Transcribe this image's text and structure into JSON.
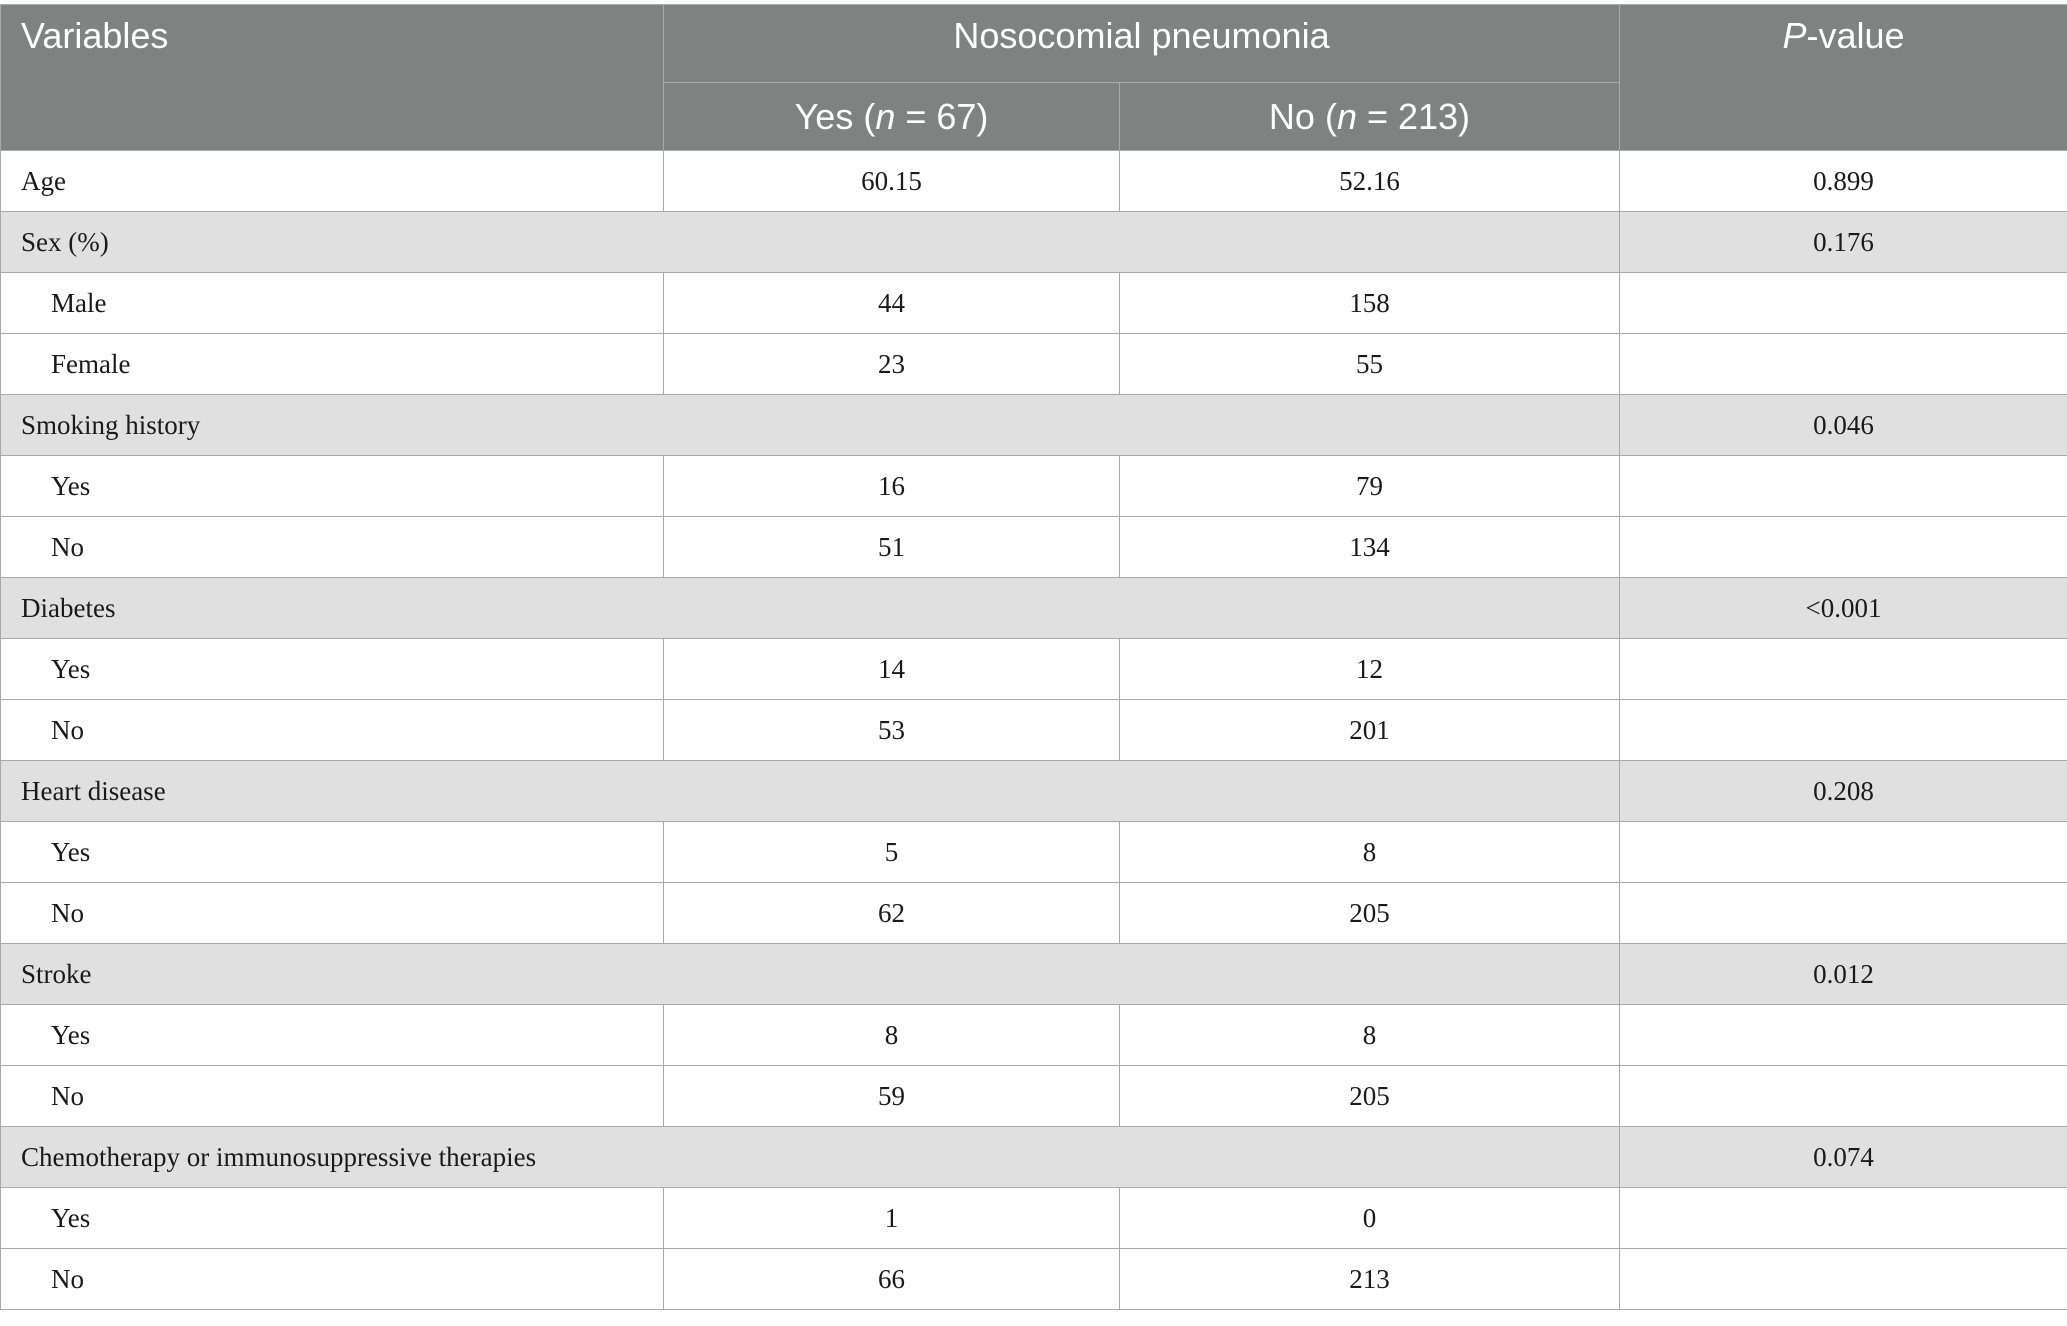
{
  "header": {
    "variables": "Variables",
    "group": "Nosocomial pneumonia",
    "yes_prefix": "Yes (",
    "yes_n": "n",
    "yes_suffix": " = 67)",
    "no_prefix": "No (",
    "no_n": "n",
    "no_suffix": " = 213)",
    "p_italic": "P",
    "p_rest": "-value"
  },
  "rows": [
    {
      "type": "data",
      "label": "Age",
      "yes": "60.15",
      "no": "52.16",
      "p": "0.899"
    },
    {
      "type": "category",
      "label": "Sex (%)",
      "p": "0.176"
    },
    {
      "type": "sub",
      "label": "Male",
      "yes": "44",
      "no": "158",
      "p": ""
    },
    {
      "type": "sub",
      "label": "Female",
      "yes": "23",
      "no": "55",
      "p": ""
    },
    {
      "type": "category",
      "label": "Smoking history",
      "p": "0.046"
    },
    {
      "type": "sub",
      "label": "Yes",
      "yes": "16",
      "no": "79",
      "p": ""
    },
    {
      "type": "sub",
      "label": "No",
      "yes": "51",
      "no": "134",
      "p": ""
    },
    {
      "type": "category",
      "label": "Diabetes",
      "p": "<0.001"
    },
    {
      "type": "sub",
      "label": "Yes",
      "yes": "14",
      "no": "12",
      "p": ""
    },
    {
      "type": "sub",
      "label": "No",
      "yes": "53",
      "no": "201",
      "p": ""
    },
    {
      "type": "category",
      "label": "Heart disease",
      "p": "0.208"
    },
    {
      "type": "sub",
      "label": "Yes",
      "yes": "5",
      "no": "8",
      "p": ""
    },
    {
      "type": "sub",
      "label": "No",
      "yes": "62",
      "no": "205",
      "p": ""
    },
    {
      "type": "category",
      "label": "Stroke",
      "p": "0.012"
    },
    {
      "type": "sub",
      "label": "Yes",
      "yes": "8",
      "no": "8",
      "p": ""
    },
    {
      "type": "sub",
      "label": "No",
      "yes": "59",
      "no": "205",
      "p": ""
    },
    {
      "type": "category",
      "label": "Chemotherapy or immunosuppressive therapies",
      "p": "0.074"
    },
    {
      "type": "sub",
      "label": "Yes",
      "yes": "1",
      "no": "0",
      "p": ""
    },
    {
      "type": "sub",
      "label": "No",
      "yes": "66",
      "no": "213",
      "p": ""
    }
  ]
}
